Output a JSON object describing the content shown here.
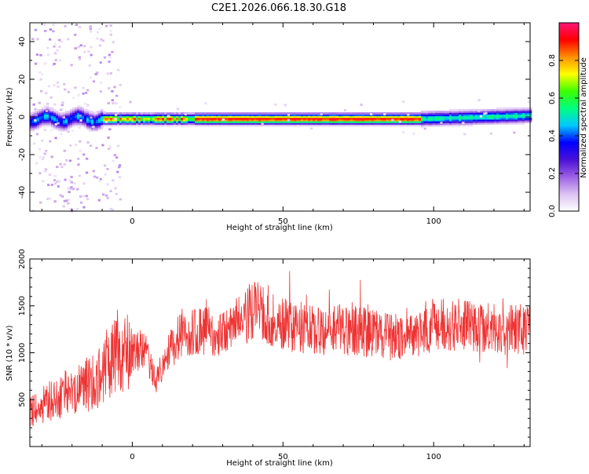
{
  "title": "C2E1.2026.066.18.30.G18",
  "chart_data": [
    {
      "type": "heatmap",
      "xlabel": "Height of straight line (km)",
      "ylabel": "Frequency (Hz)",
      "xlim": [
        -34,
        132
      ],
      "ylim": [
        -50,
        50
      ],
      "xticks": [
        0,
        50,
        100
      ],
      "xtick_labels": [
        "0",
        "50",
        "100"
      ],
      "yticks": [
        -40,
        -20,
        0,
        20,
        40
      ],
      "ytick_labels": [
        "-40",
        "-20",
        "0",
        "20",
        "40"
      ],
      "colorbar": {
        "label": "Normalized spectral amplitude",
        "range": [
          0,
          1
        ],
        "ticks": [
          0,
          0.2,
          0.4,
          0.6,
          0.8
        ],
        "tick_labels": [
          "0.0",
          "0.2",
          "0.4",
          "0.6",
          "0.8"
        ],
        "colors": [
          "#ffffff",
          "#dcc2f2",
          "#9c60e4",
          "#4a10d8",
          "#0000ff",
          "#00c8ff",
          "#00ff80",
          "#3cff00",
          "#ffff00",
          "#ff9000",
          "#ff0000",
          "#ff1478"
        ]
      },
      "ridge": {
        "frequency_hz": -1,
        "peak_from_km": -10,
        "peak_to_km": 95
      }
    },
    {
      "type": "line",
      "xlabel": "Height of straight line (km)",
      "ylabel": "SNR (10 * v/v)",
      "xlim": [
        -34,
        132
      ],
      "ylim": [
        0,
        2000
      ],
      "xticks": [
        0,
        50,
        100
      ],
      "xtick_labels": [
        "0",
        "50",
        "100"
      ],
      "yticks": [
        500,
        1000,
        1500,
        2000
      ],
      "ytick_labels": [
        "500",
        "1000",
        "1500",
        "2000"
      ],
      "color": "#ee3333",
      "trend": {
        "x": [
          -34,
          -20,
          -12,
          -8,
          -4,
          0,
          4,
          8,
          12,
          16,
          20,
          30,
          40,
          50,
          60,
          70,
          80,
          90,
          100,
          110,
          120,
          132
        ],
        "y": [
          380,
          600,
          700,
          900,
          1050,
          1000,
          1050,
          700,
          1000,
          1200,
          1250,
          1200,
          1450,
          1300,
          1250,
          1250,
          1200,
          1150,
          1300,
          1300,
          1250,
          1250
        ]
      }
    }
  ]
}
